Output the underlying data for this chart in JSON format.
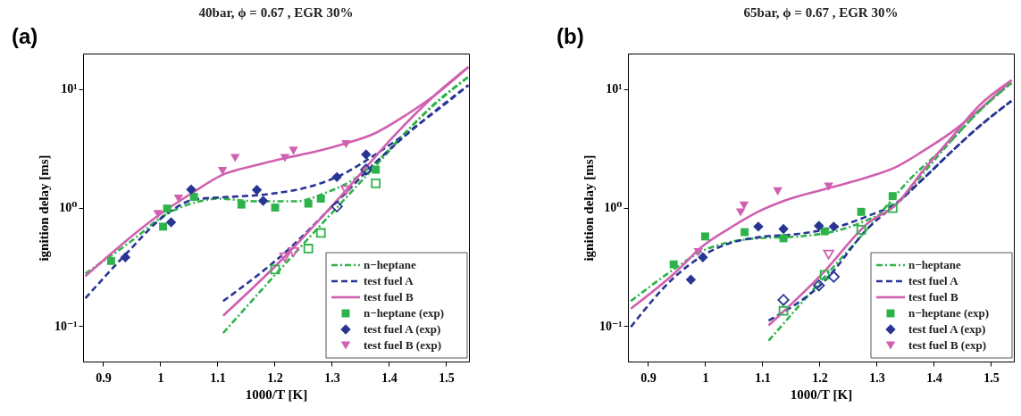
{
  "chart_data": [
    {
      "type": "line",
      "title": "40bar, ϕ = 0.67 , EGR 30%",
      "xlabel": "1000/T [K]",
      "ylabel": "ignition delay [ms]",
      "annotations": [
        "(a)"
      ],
      "log": "y",
      "legend": "bottom right",
      "xlim": [
        0.865,
        1.54
      ],
      "xticks": [
        0.9,
        1,
        1.1,
        1.2,
        1.3,
        1.4,
        1.5
      ],
      "ylim": [
        0.05,
        20
      ],
      "yticks": [
        {
          "value": 0.1,
          "label": "10⁻¹"
        },
        {
          "value": 1,
          "label": "10⁰"
        },
        {
          "value": 10,
          "label": "10¹"
        }
      ],
      "series": [
        {
          "name": "n−heptane",
          "type": "line",
          "line_style": "dashdot",
          "color": "#2eb34a",
          "x": [
            0.869,
            0.948,
            1.011,
            1.06,
            1.103,
            1.166,
            1.239,
            1.287,
            1.335,
            1.384,
            1.432,
            1.481,
            1.539
          ],
          "values": [
            0.277,
            0.515,
            0.88,
            1.1,
            1.19,
            1.13,
            1.13,
            1.32,
            1.69,
            2.59,
            4.45,
            7.62,
            12.7
          ]
        },
        {
          "name": "test fuel A",
          "type": "line",
          "line_style": "dashed",
          "color": "#283593",
          "x": [
            0.869,
            0.939,
            1.011,
            1.06,
            1.108,
            1.19,
            1.263,
            1.311,
            1.384,
            1.456,
            1.539
          ],
          "values": [
            0.171,
            0.4,
            0.88,
            1.17,
            1.22,
            1.3,
            1.51,
            1.83,
            2.97,
            5.23,
            10.8
          ]
        },
        {
          "name": "test fuel B",
          "type": "line",
          "line_style": "solid",
          "color": "#d060b0",
          "x": [
            0.869,
            0.997,
            1.055,
            1.108,
            1.166,
            1.219,
            1.272,
            1.325,
            1.374,
            1.432,
            1.481,
            1.539
          ],
          "values": [
            0.263,
            0.86,
            1.32,
            1.88,
            2.27,
            2.62,
            2.97,
            3.49,
            4.21,
            6.14,
            8.96,
            15.4
          ]
        },
        {
          "type": "line",
          "line_style": "dashdot",
          "color": "#2eb34a",
          "x": [
            1.11,
            1.201,
            1.309,
            1.384,
            1.456,
            1.539
          ],
          "values": [
            0.087,
            0.27,
            1.0,
            2.46,
            5.82,
            12.7
          ]
        },
        {
          "type": "line",
          "line_style": "dashed",
          "color": "#283593",
          "x": [
            1.11,
            1.219,
            1.309,
            1.384,
            1.456,
            1.539
          ],
          "values": [
            0.162,
            0.42,
            1.12,
            2.59,
            5.23,
            10.8
          ]
        },
        {
          "type": "line",
          "line_style": "solid",
          "color": "#d060b0",
          "x": [
            1.11,
            1.219,
            1.325,
            1.408,
            1.481,
            1.539
          ],
          "values": [
            0.122,
            0.39,
            1.4,
            3.99,
            8.96,
            15.4
          ]
        },
        {
          "name": "n−heptane (exp)",
          "type": "scatter",
          "marker": "square",
          "color": "#2eb34a",
          "x": [
            0.914,
            1.005,
            1.012,
            1.059,
            1.142,
            1.201,
            1.259,
            1.281,
            1.377
          ],
          "values": [
            0.354,
            0.69,
            0.98,
            1.23,
            1.06,
            1.0,
            1.08,
            1.19,
            2.09
          ]
        },
        {
          "name": "test fuel A (exp)",
          "type": "scatter",
          "marker": "diamond",
          "color": "#283593",
          "x": [
            0.939,
            1.019,
            1.054,
            1.169,
            1.18,
            1.309,
            1.36
          ],
          "values": [
            0.38,
            0.75,
            1.42,
            1.41,
            1.14,
            1.81,
            2.81
          ]
        },
        {
          "name": "test fuel B (exp)",
          "type": "scatter",
          "marker": "triangle",
          "color": "#d060b0",
          "x": [
            0.996,
            1.032,
            1.109,
            1.131,
            1.218,
            1.233,
            1.325
          ],
          "values": [
            0.88,
            1.19,
            2.04,
            2.62,
            2.62,
            3.02,
            3.43
          ]
        },
        {
          "type": "scatter",
          "marker": "square",
          "color": "#2eb34a",
          "x": [
            1.201,
            1.259,
            1.281,
            1.377
          ],
          "values": [
            0.3,
            0.45,
            0.61,
            1.6
          ]
        },
        {
          "type": "scatter",
          "marker": "diamond",
          "color": "#283593",
          "x": [
            1.309,
            1.36
          ],
          "values": [
            1.02,
            2.09
          ]
        },
        {
          "type": "scatter",
          "marker": "triangle",
          "color": "#d060b0",
          "x": [
            1.218,
            1.233,
            1.325
          ],
          "values": [
            0.38,
            0.42,
            1.4
          ]
        }
      ]
    },
    {
      "type": "line",
      "title": "65bar, ϕ = 0.67 , EGR 30%",
      "xlabel": "1000/T [K]",
      "ylabel": "ignition delay [ms]",
      "annotations": [
        "(b)"
      ],
      "log": "y",
      "legend": "bottom right",
      "xlim": [
        0.865,
        1.54
      ],
      "xticks": [
        0.9,
        1,
        1.1,
        1.2,
        1.3,
        1.4,
        1.5
      ],
      "ylim": [
        0.05,
        20
      ],
      "yticks": [
        {
          "value": 0.1,
          "label": "10⁻¹"
        },
        {
          "value": 1,
          "label": "10⁰"
        },
        {
          "value": 10,
          "label": "10¹"
        }
      ],
      "series": [
        {
          "name": "n−heptane",
          "type": "line",
          "line_style": "dashdot",
          "color": "#2eb34a",
          "x": [
            0.87,
            0.947,
            0.995,
            1.043,
            1.092,
            1.164,
            1.237,
            1.285,
            1.333,
            1.382,
            1.43,
            1.478,
            1.536
          ],
          "values": [
            0.162,
            0.305,
            0.43,
            0.51,
            0.55,
            0.57,
            0.65,
            0.79,
            1.05,
            1.96,
            3.65,
            6.43,
            11.3
          ]
        },
        {
          "name": "test fuel A",
          "type": "line",
          "line_style": "dashed",
          "color": "#283593",
          "x": [
            0.87,
            0.947,
            0.995,
            1.043,
            1.092,
            1.164,
            1.237,
            1.285,
            1.333,
            1.382,
            1.43,
            1.478,
            1.536
          ],
          "values": [
            0.098,
            0.26,
            0.39,
            0.5,
            0.56,
            0.6,
            0.7,
            0.85,
            1.08,
            1.76,
            2.94,
            4.78,
            7.97
          ]
        },
        {
          "name": "test fuel B",
          "type": "line",
          "line_style": "solid",
          "color": "#d060b0",
          "x": [
            0.87,
            0.947,
            0.995,
            1.043,
            1.092,
            1.14,
            1.216,
            1.285,
            1.333,
            1.382,
            1.43,
            1.478,
            1.536
          ],
          "values": [
            0.14,
            0.28,
            0.47,
            0.67,
            0.92,
            1.15,
            1.46,
            1.81,
            2.19,
            3.02,
            4.29,
            6.6,
            11.9
          ]
        },
        {
          "type": "line",
          "line_style": "dashdot",
          "color": "#2eb34a",
          "x": [
            1.111,
            1.209,
            1.285,
            1.357,
            1.43,
            1.478,
            1.536
          ],
          "values": [
            0.075,
            0.26,
            0.67,
            1.71,
            3.65,
            6.43,
            11.3
          ]
        },
        {
          "type": "line",
          "line_style": "dashed",
          "color": "#283593",
          "x": [
            1.111,
            1.209,
            1.285,
            1.333,
            1.382,
            1.43,
            1.478,
            1.536
          ],
          "values": [
            0.111,
            0.24,
            0.67,
            1.07,
            1.76,
            2.94,
            4.78,
            7.97
          ]
        },
        {
          "type": "line",
          "line_style": "solid",
          "color": "#d060b0",
          "x": [
            1.111,
            1.209,
            1.285,
            1.333,
            1.382,
            1.43,
            1.478,
            1.536
          ],
          "values": [
            0.101,
            0.29,
            0.74,
            1.05,
            2.07,
            3.85,
            7.16,
            11.9
          ]
        },
        {
          "name": "n−heptane (exp)",
          "type": "scatter",
          "marker": "square",
          "color": "#2eb34a",
          "x": [
            0.945,
            1.0,
            1.069,
            1.137,
            1.209,
            1.273,
            1.328
          ],
          "values": [
            0.331,
            0.57,
            0.62,
            0.55,
            0.63,
            0.92,
            1.25
          ]
        },
        {
          "name": "test fuel A (exp)",
          "type": "scatter",
          "marker": "diamond",
          "color": "#283593",
          "x": [
            0.975,
            0.996,
            1.093,
            1.137,
            1.199,
            1.225
          ],
          "values": [
            0.246,
            0.38,
            0.69,
            0.66,
            0.7,
            0.69
          ]
        },
        {
          "name": "test fuel B (exp)",
          "type": "scatter",
          "marker": "triangle",
          "color": "#d060b0",
          "x": [
            0.988,
            1.062,
            1.068,
            1.127,
            1.216
          ],
          "values": [
            0.42,
            0.91,
            1.04,
            1.37,
            1.5
          ]
        },
        {
          "type": "scatter",
          "marker": "square",
          "color": "#2eb34a",
          "x": [
            1.137,
            1.209,
            1.273,
            1.328
          ],
          "values": [
            0.134,
            0.27,
            0.65,
            0.99
          ]
        },
        {
          "type": "scatter",
          "marker": "diamond",
          "color": "#283593",
          "x": [
            1.137,
            1.199,
            1.225
          ],
          "values": [
            0.166,
            0.22,
            0.26
          ]
        },
        {
          "type": "scatter",
          "marker": "triangle",
          "color": "#d060b0",
          "x": [
            1.216
          ],
          "values": [
            0.4
          ]
        }
      ]
    }
  ]
}
